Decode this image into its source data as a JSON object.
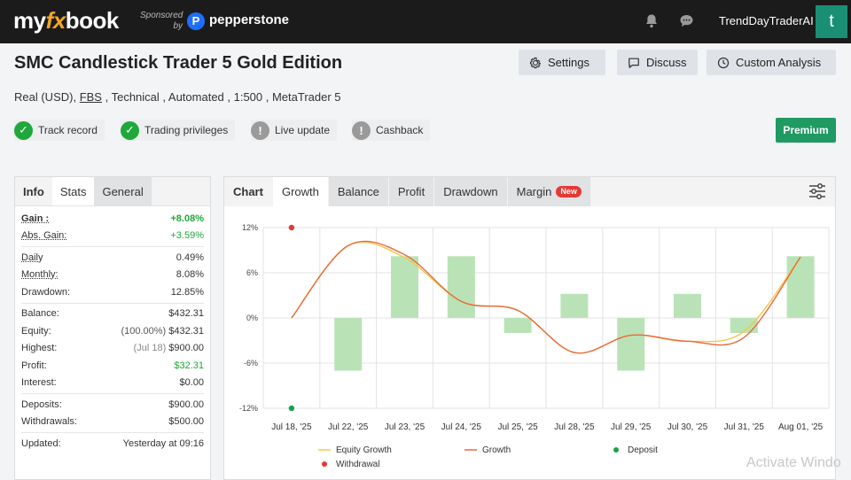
{
  "topbar": {
    "logo_my": "my",
    "logo_fx": "fx",
    "logo_book": "book",
    "sponsored_line1": "Sponsored",
    "sponsored_line2": "by",
    "sponsor_name": "pepperstone",
    "sponsor_mark": "P",
    "username": "TrendDayTraderAI",
    "avatar_letter": "t",
    "icons": [
      "bell-icon",
      "chat-icon"
    ]
  },
  "header": {
    "title": "SMC Candlestick Trader 5 Gold Edition",
    "sub_prefix": "Real (USD), ",
    "sub_broker": "FBS",
    "sub_suffix": " , Technical , Automated , 1:500 , MetaTrader 5",
    "buttons": {
      "settings": "Settings",
      "discuss": "Discuss",
      "custom_analysis": "Custom Analysis"
    },
    "badges": [
      {
        "label": "Track record",
        "status": "ok"
      },
      {
        "label": "Trading privileges",
        "status": "ok"
      },
      {
        "label": "Live update",
        "status": "warn"
      },
      {
        "label": "Cashback",
        "status": "warn"
      }
    ],
    "premium": "Premium"
  },
  "stats": {
    "tabs": [
      "Info",
      "Stats",
      "General"
    ],
    "gain": {
      "label": "Gain :",
      "value": "+8.08%"
    },
    "abs_gain": {
      "label": "Abs. Gain:",
      "value": "+3.59%"
    },
    "daily": {
      "label": "Daily",
      "value": "0.49%"
    },
    "monthly": {
      "label": "Monthly:",
      "value": "8.08%"
    },
    "drawdown": {
      "label": "Drawdown:",
      "value": "12.85%"
    },
    "balance": {
      "label": "Balance:",
      "value": "$432.31"
    },
    "equity": {
      "label": "Equity:",
      "note": "(100.00%)",
      "value": "$432.31"
    },
    "highest": {
      "label": "Highest:",
      "note": "(Jul 18)",
      "value": "$900.00"
    },
    "profit": {
      "label": "Profit:",
      "value": "$32.31"
    },
    "interest": {
      "label": "Interest:",
      "value": "$0.00"
    },
    "deposits": {
      "label": "Deposits:",
      "value": "$900.00"
    },
    "withdrawals": {
      "label": "Withdrawals:",
      "value": "$500.00"
    },
    "updated": {
      "label": "Updated:",
      "value": "Yesterday at 09:16"
    }
  },
  "chart_panel": {
    "label": "Chart",
    "tabs": [
      "Growth",
      "Balance",
      "Profit",
      "Drawdown",
      "Margin"
    ],
    "active_tab": "Growth",
    "new_tag": "New",
    "icons": [
      "filter-icon"
    ]
  },
  "chart_data": {
    "type": "bar",
    "categories": [
      "Jul 18, '25",
      "Jul 22, '25",
      "Jul 23, '25",
      "Jul 24, '25",
      "Jul 25, '25",
      "Jul 28, '25",
      "Jul 29, '25",
      "Jul 30, '25",
      "Jul 31, '25",
      "Aug 01, '25"
    ],
    "y_ticks": [
      "12%",
      "6%",
      "0%",
      "-6%",
      "-12%"
    ],
    "ylim": [
      -12,
      12
    ],
    "grid": true,
    "bar_values": [
      0,
      -7,
      8.2,
      8.2,
      -2,
      3.2,
      -7,
      3.2,
      -2,
      8.2
    ],
    "series": [
      {
        "name": "Equity Growth",
        "color": "#f2c94c",
        "values": [
          0,
          9.6,
          8.0,
          2.2,
          1.0,
          -4.6,
          -2.3,
          -3.1,
          -1.8,
          8.1
        ]
      },
      {
        "name": "Growth",
        "color": "#e8693f",
        "values": [
          0,
          9.6,
          8.4,
          2.2,
          1.0,
          -4.6,
          -2.3,
          -3.1,
          -2.6,
          8.1
        ]
      }
    ],
    "deposit": {
      "name": "Deposit",
      "x_index": 0,
      "value": -12,
      "color": "#17a34a"
    },
    "withdrawal": {
      "name": "Withdrawal",
      "x_index": 0,
      "value": 12,
      "color": "#e53935"
    },
    "bar_color": "#b9e3b6",
    "legend_position": "bottom"
  },
  "watermark": "Activate Windo"
}
